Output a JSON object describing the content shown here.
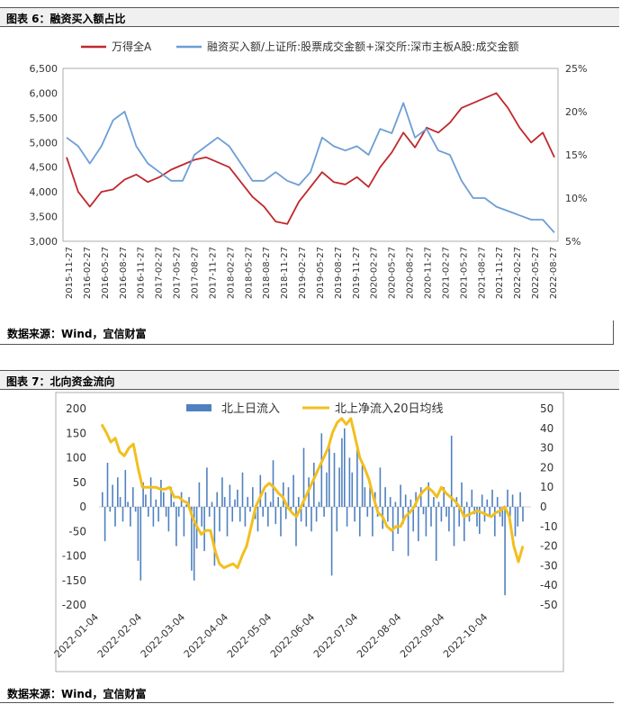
{
  "figure1": {
    "title": "图表 6：融资买入额占比",
    "source": "数据来源：Wind，宜信财富"
  },
  "figure2": {
    "title": "图表 7：北向资金流向",
    "source": "数据来源：Wind，宜信财富"
  },
  "colors": {
    "red": "#c0282d",
    "blue": "#6d9ed6",
    "bar_blue": "#4f81c0",
    "yellow": "#f2bf1e"
  },
  "chart_data": [
    {
      "type": "line",
      "legend": [
        "万得全A",
        "融资买入额/上证所:股票成交金额+深交所:深市主板A股:成交金额"
      ],
      "x_tick_labels": [
        "2015-11-27",
        "2016-02-27",
        "2016-05-27",
        "2016-08-27",
        "2016-11-27",
        "2017-02-27",
        "2017-05-27",
        "2017-08-27",
        "2017-11-27",
        "2018-02-27",
        "2018-05-27",
        "2018-08-27",
        "2018-11-27",
        "2019-02-27",
        "2019-05-27",
        "2019-08-27",
        "2019-11-27",
        "2020-02-27",
        "2020-05-27",
        "2020-08-27",
        "2020-11-27",
        "2021-02-27",
        "2021-05-27",
        "2021-08-27",
        "2021-11-27",
        "2022-02-27",
        "2022-05-27",
        "2022-08-27"
      ],
      "y_left_ticks": [
        "6,500",
        "6,000",
        "5,500",
        "5,000",
        "4,500",
        "4,000",
        "3,500",
        "3,000"
      ],
      "y_right_ticks": [
        "25%",
        "20%",
        "15%",
        "10%",
        "5%"
      ],
      "ylim_left": [
        3000,
        6500
      ],
      "ylim_right": [
        5,
        25
      ],
      "grid": false,
      "legend_position": "top",
      "series": [
        {
          "name": "万得全A",
          "axis": "left",
          "values": [
            4700,
            4000,
            3700,
            4000,
            4050,
            4250,
            4350,
            4200,
            4300,
            4450,
            4550,
            4650,
            4700,
            4600,
            4500,
            4200,
            3900,
            3700,
            3400,
            3350,
            3800,
            4100,
            4400,
            4200,
            4150,
            4300,
            4100,
            4500,
            4800,
            5200,
            4900,
            5300,
            5200,
            5400,
            5700,
            5800,
            5900,
            6000,
            5700,
            5300,
            5000,
            5200,
            4700
          ]
        },
        {
          "name": "融资买入额/上证所:股票成交金额+深交所:深市主板A股:成交金额",
          "axis": "right",
          "values": [
            17,
            16,
            14,
            16,
            19,
            20,
            16,
            14,
            13,
            12,
            12,
            15,
            16,
            17,
            16,
            14,
            12,
            12,
            13,
            12,
            11.5,
            13,
            17,
            16,
            15.5,
            16,
            15,
            18,
            17.5,
            21,
            17,
            18,
            15.5,
            15,
            12,
            10,
            10,
            9,
            8.5,
            8,
            7.5,
            7.5,
            6
          ]
        }
      ]
    },
    {
      "type": "bar",
      "legend": [
        "北上日流入",
        "北上净流入20日均线"
      ],
      "x_tick_labels": [
        "2022-01-04",
        "2022-02-04",
        "2022-03-04",
        "2022-04-04",
        "2022-05-04",
        "2022-06-04",
        "2022-07-04",
        "2022-08-04",
        "2022-09-04",
        "2022-10-04"
      ],
      "y_left_ticks": [
        "200",
        "150",
        "100",
        "50",
        "0",
        "-50",
        "-100",
        "-150",
        "-200"
      ],
      "y_right_ticks": [
        "50",
        "40",
        "30",
        "20",
        "10",
        "0",
        "-10",
        "-20",
        "-30",
        "-40",
        "-50"
      ],
      "ylim_left": [
        -200,
        200
      ],
      "ylim_right": [
        -50,
        50
      ],
      "grid": false,
      "legend_position": "top",
      "series": [
        {
          "name": "北上日流入",
          "axis": "left",
          "type": "bar",
          "values": [
            30,
            -70,
            90,
            -10,
            45,
            -40,
            60,
            20,
            -30,
            75,
            10,
            -40,
            40,
            -10,
            -110,
            -150,
            50,
            25,
            -20,
            60,
            -40,
            15,
            -30,
            55,
            30,
            -20,
            -50,
            40,
            10,
            -80,
            -20,
            30,
            -60,
            5,
            20,
            -130,
            -150,
            -85,
            50,
            -40,
            -90,
            80,
            -20,
            10,
            -120,
            30,
            -50,
            60,
            20,
            -60,
            45,
            -30,
            15,
            35,
            -30,
            70,
            -40,
            20,
            -10,
            40,
            -25,
            -50,
            65,
            -20,
            30,
            -40,
            10,
            95,
            -35,
            20,
            -60,
            50,
            -25,
            40,
            -10,
            65,
            -80,
            20,
            -30,
            120,
            -40,
            60,
            -50,
            90,
            -30,
            10,
            150,
            -20,
            70,
            130,
            -140,
            110,
            -50,
            80,
            140,
            160,
            -40,
            100,
            70,
            -30,
            120,
            -60,
            90,
            40,
            -20,
            40,
            -60,
            30,
            -20,
            80,
            -45,
            40,
            -30,
            20,
            -90,
            10,
            -55,
            45,
            -35,
            25,
            -100,
            15,
            -50,
            30,
            -70,
            40,
            -15,
            -60,
            50,
            -40,
            20,
            -110,
            10,
            -30,
            40,
            -20,
            -50,
            145,
            -80,
            20,
            -40,
            50,
            -70,
            10,
            -30,
            35,
            -15,
            -40,
            -55,
            25,
            -30,
            15,
            -20,
            35,
            -60,
            20,
            -20,
            -40,
            -180,
            35,
            -20,
            25,
            -60,
            -40,
            30,
            -30
          ]
        },
        {
          "name": "北上净流入20日均线",
          "axis": "right",
          "type": "line",
          "values": [
            42,
            38,
            33,
            35,
            28,
            26,
            30,
            32,
            20,
            10,
            10,
            10,
            10,
            9,
            9,
            10,
            5,
            5,
            3,
            2,
            -5,
            -10,
            -14,
            -12,
            -12,
            -22,
            -29,
            -31,
            -30,
            -29,
            -31,
            -25,
            -20,
            -10,
            0,
            5,
            10,
            12,
            10,
            7,
            5,
            0,
            -3,
            -5,
            0,
            5,
            10,
            15,
            20,
            25,
            30,
            38,
            43,
            45,
            42,
            45,
            35,
            25,
            20,
            14,
            5,
            -3,
            -5,
            -10,
            -12,
            -10,
            -10,
            -5,
            -3,
            0,
            5,
            8,
            10,
            8,
            5,
            10,
            7,
            5,
            3,
            0,
            -5,
            -4,
            -3,
            -2,
            -3,
            -4,
            -5,
            -3,
            -2,
            0,
            -5,
            -20,
            -28,
            -20
          ]
        }
      ]
    }
  ]
}
